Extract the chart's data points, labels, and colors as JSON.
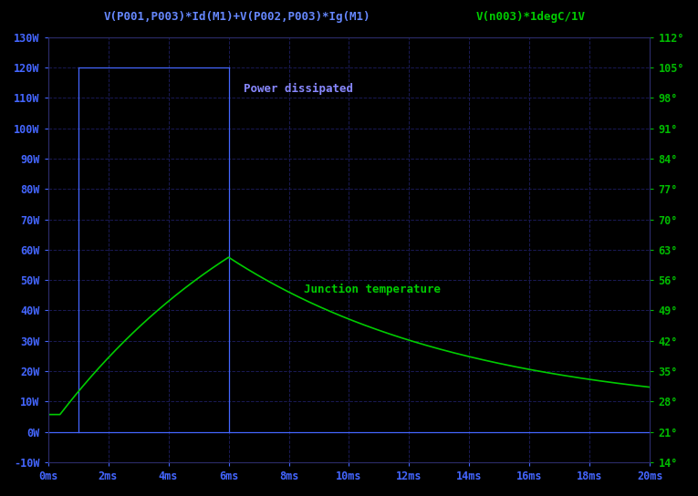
{
  "bg_color": "#000000",
  "left_axis_color": "#4466ff",
  "right_axis_color": "#00bb00",
  "line_color_green": "#00cc00",
  "line_color_blue": "#4466ff",
  "title_left": "V(P001,P003)*Id(M1)+V(P002,P003)*Ig(M1)",
  "title_right": "V(n003)*1degC/1V",
  "title_left_color": "#6688ff",
  "title_right_color": "#00cc00",
  "annotation_power": "Power dissipated",
  "annotation_temp": "Junction temperature",
  "annotation_color_power": "#8888ff",
  "annotation_color_temp": "#00cc00",
  "xlim": [
    0,
    0.02
  ],
  "ylim_left": [
    -10,
    130
  ],
  "ylim_right": [
    14,
    112
  ],
  "xtick_labels": [
    "0ms",
    "2ms",
    "4ms",
    "6ms",
    "8ms",
    "10ms",
    "12ms",
    "14ms",
    "16ms",
    "18ms",
    "20ms"
  ],
  "xtick_vals": [
    0,
    0.002,
    0.004,
    0.006,
    0.008,
    0.01,
    0.012,
    0.014,
    0.016,
    0.018,
    0.02
  ],
  "ytick_left_vals": [
    -10,
    0,
    10,
    20,
    30,
    40,
    50,
    60,
    70,
    80,
    90,
    100,
    110,
    120,
    130
  ],
  "ytick_left_labels": [
    "-10W",
    "0W",
    "10W",
    "20W",
    "30W",
    "40W",
    "50W",
    "60W",
    "70W",
    "80W",
    "90W",
    "100W",
    "110W",
    "120W",
    "130W"
  ],
  "ytick_right_vals": [
    14,
    21,
    28,
    35,
    42,
    49,
    56,
    63,
    70,
    77,
    84,
    91,
    98,
    105,
    112
  ],
  "ytick_right_labels": [
    "14°",
    "21°",
    "28°",
    "35°",
    "42°",
    "49°",
    "56°",
    "63°",
    "70°",
    "77°",
    "84°",
    "91°",
    "98°",
    "105°",
    "112°"
  ]
}
